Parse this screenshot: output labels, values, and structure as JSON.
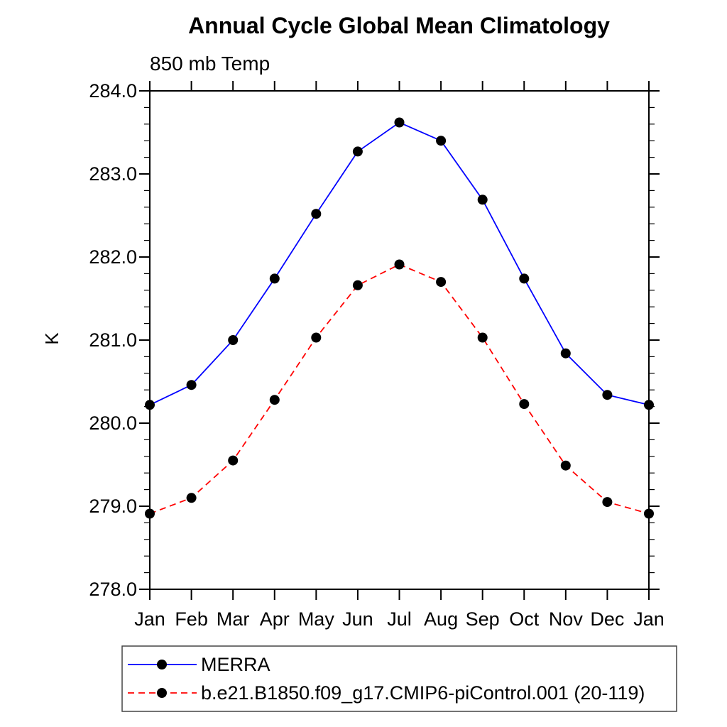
{
  "page": {
    "background_color": "#ffffff",
    "axis_color": "#000000",
    "legend_border_color": "#444444"
  },
  "chart_data": {
    "type": "line",
    "title": "Annual Cycle Global Mean Climatology",
    "subtitle": "850 mb Temp",
    "xlabel": "",
    "ylabel": "K",
    "categories": [
      "Jan",
      "Feb",
      "Mar",
      "Apr",
      "May",
      "Jun",
      "Jul",
      "Aug",
      "Sep",
      "Oct",
      "Nov",
      "Dec",
      "Jan"
    ],
    "ylim": [
      278.0,
      284.0
    ],
    "ytick_step": 1.0,
    "yminor_step": 0.2,
    "ytick_labels": [
      "278.0",
      "279.0",
      "280.0",
      "281.0",
      "282.0",
      "283.0",
      "284.0"
    ],
    "grid": false,
    "legend_position": "bottom-left-boxed",
    "marker": "filled-circle",
    "marker_color": "#000000",
    "series": [
      {
        "name": "MERRA",
        "color": "#0000ff",
        "line_style": "solid",
        "values": [
          280.22,
          280.46,
          281.0,
          281.74,
          282.52,
          283.27,
          283.62,
          283.4,
          282.69,
          281.74,
          280.84,
          280.34,
          280.22
        ]
      },
      {
        "name": "b.e21.B1850.f09_g17.CMIP6-piControl.001 (20-119)",
        "color": "#ff0000",
        "line_style": "dashed",
        "values": [
          278.91,
          279.1,
          279.55,
          280.28,
          281.03,
          281.66,
          281.91,
          281.7,
          281.03,
          280.23,
          279.49,
          279.05,
          278.91
        ]
      }
    ]
  }
}
